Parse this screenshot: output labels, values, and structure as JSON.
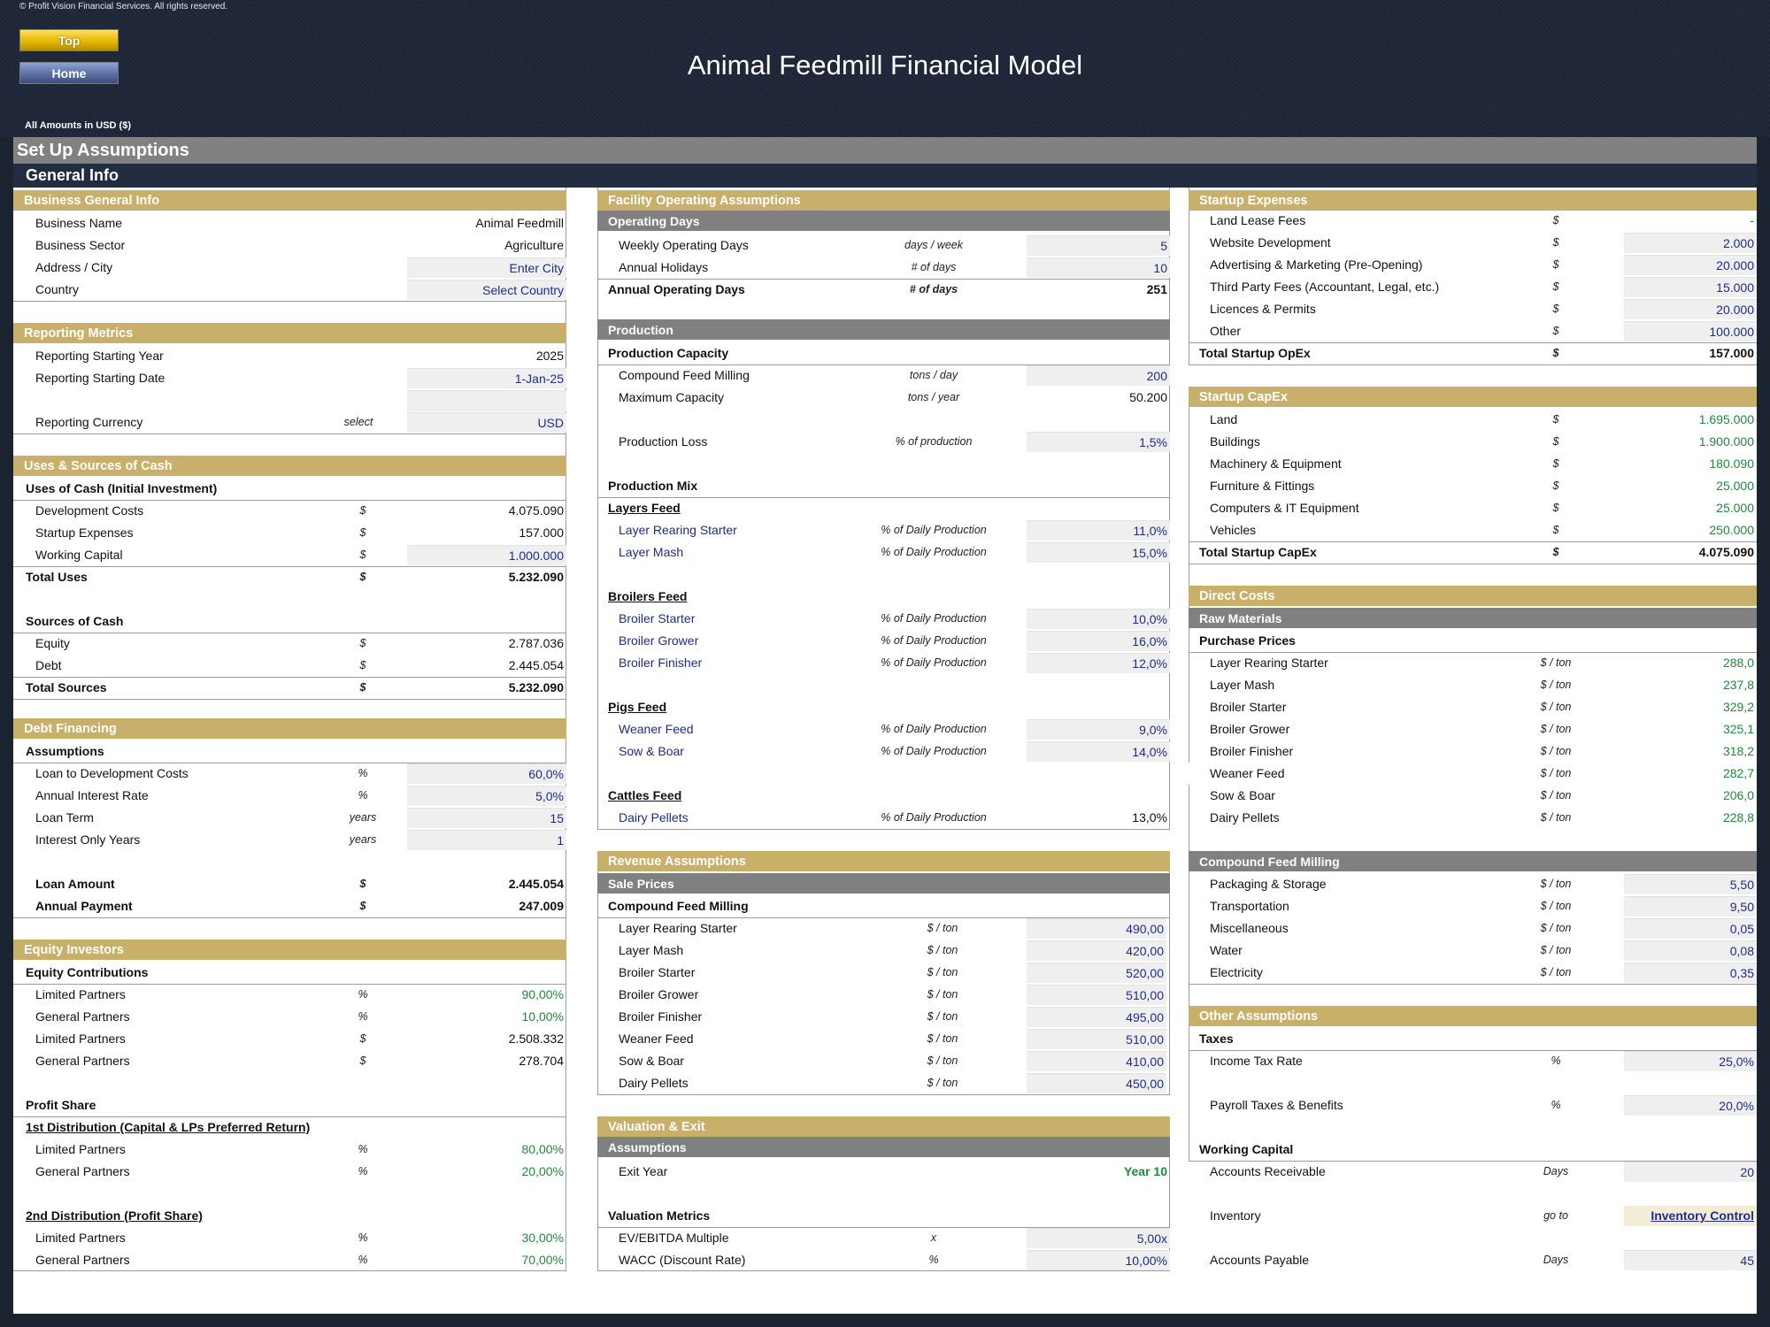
{
  "header": {
    "copyright": "© Profit Vision Financial Services. All rights reserved.",
    "top": "Top",
    "home": "Home",
    "title": "Animal Feedmill Financial Model",
    "amounts": "All Amounts in  USD ($)"
  },
  "sheet": {
    "title": "Set Up Assumptions",
    "subtitle": "General Info"
  },
  "business": {
    "title": "Business General Info",
    "name_l": "Business Name",
    "name_v": "Animal Feedmill",
    "sector_l": "Business Sector",
    "sector_v": "Agriculture",
    "city_l": "Address / City",
    "city_v": "Enter City",
    "country_l": "Country",
    "country_v": "Select Country"
  },
  "reporting": {
    "title": "Reporting Metrics",
    "year_l": "Reporting Starting Year",
    "year_v": "2025",
    "date_l": "Reporting Starting Date",
    "date_v": "1-Jan-25",
    "cur_l": "Reporting Currency",
    "cur_u": "select",
    "cur_v": "USD"
  },
  "uses": {
    "title": "Uses & Sources of Cash",
    "uses_h": "Uses of Cash (Initial Investment)",
    "dev_l": "Development Costs",
    "dev_v": "4.075.090",
    "start_l": "Startup Expenses",
    "start_v": "157.000",
    "wc_l": "Working Capital",
    "wc_v": "1.000.000",
    "tu_l": "Total Uses",
    "tu_v": "5.232.090",
    "src_h": "Sources of Cash",
    "eq_l": "Equity",
    "eq_v": "2.787.036",
    "debt_l": "Debt",
    "debt_v": "2.445.054",
    "ts_l": "Total Sources",
    "ts_v": "5.232.090",
    "cur": "$"
  },
  "debt": {
    "title": "Debt Financing",
    "assump": "Assumptions",
    "ltd_l": "Loan to Development Costs",
    "ltd_u": "%",
    "ltd_v": "60,0%",
    "air_l": "Annual Interest Rate",
    "air_u": "%",
    "air_v": "5,0%",
    "lt_l": "Loan Term",
    "lt_u": "years",
    "lt_v": "15",
    "io_l": "Interest Only Years",
    "io_u": "years",
    "io_v": "1",
    "la_l": "Loan Amount",
    "la_u": "$",
    "la_v": "2.445.054",
    "ap_l": "Annual Payment",
    "ap_u": "$",
    "ap_v": "247.009"
  },
  "equity": {
    "title": "Equity Investors",
    "contrib": "Equity Contributions",
    "r1_l": "Limited Partners",
    "r1_u": "%",
    "r1_v": "90,00%",
    "r2_l": "General Partners",
    "r2_u": "%",
    "r2_v": "10,00%",
    "r3_l": "Limited Partners",
    "r3_u": "$",
    "r3_v": "2.508.332",
    "r4_l": "General Partners",
    "r4_u": "$",
    "r4_v": "278.704",
    "ps": "Profit Share",
    "d1": "1st Distribution (Capital & LPs Preferred Return)",
    "d1a_l": "Limited Partners",
    "d1a_u": "%",
    "d1a_v": "80,00%",
    "d1b_l": "General Partners",
    "d1b_u": "%",
    "d1b_v": "20,00%",
    "d2": "2nd Distribution (Profit Share)",
    "d2a_l": "Limited Partners",
    "d2a_u": "%",
    "d2a_v": "30,00%",
    "d2b_l": "General Partners",
    "d2b_u": "%",
    "d2b_v": "70,00%"
  },
  "facility": {
    "title": "Facility Operating Assumptions",
    "opdays": "Operating Days",
    "w_l": "Weekly Operating Days",
    "w_u": "days / week",
    "w_v": "5",
    "h_l": "Annual Holidays",
    "h_u": "# of days",
    "h_v": "10",
    "a_l": "Annual Operating Days",
    "a_u": "# of days",
    "a_v": "251",
    "prod": "Production",
    "cap": "Production Capacity",
    "cfm_l": "Compound Feed Milling",
    "cfm_u": "tons / day",
    "cfm_v": "200",
    "max_l": "Maximum Capacity",
    "max_u": "tons / year",
    "max_v": "50.200",
    "pl_l": "Production Loss",
    "pl_u": "% of production",
    "pl_v": "1,5%",
    "mix": "Production Mix",
    "pct": "% of Daily Production",
    "layers": "Layers Feed",
    "lrs_l": "Layer Rearing Starter",
    "lrs_v": "11,0%",
    "lm_l": "Layer Mash",
    "lm_v": "15,0%",
    "broilers": "Broilers Feed",
    "bs_l": "Broiler Starter",
    "bs_v": "10,0%",
    "bg_l": "Broiler Grower",
    "bg_v": "16,0%",
    "bf_l": "Broiler Finisher",
    "bf_v": "12,0%",
    "pigs": "Pigs Feed",
    "wf_l": "Weaner Feed",
    "wf_v": "9,0%",
    "sb_l": "Sow & Boar",
    "sb_v": "14,0%",
    "cattle": "Cattles Feed",
    "dp_l": "Dairy Pellets",
    "dp_v": "13,0%"
  },
  "revenue": {
    "title": "Revenue Assumptions",
    "sale": "Sale Prices",
    "cfm": "Compound Feed Milling",
    "u": "$ / ton",
    "items": [
      [
        "Layer Rearing Starter",
        "490,00"
      ],
      [
        "Layer Mash",
        "420,00"
      ],
      [
        "Broiler Starter",
        "520,00"
      ],
      [
        "Broiler Grower",
        "510,00"
      ],
      [
        "Broiler Finisher",
        "495,00"
      ],
      [
        "Weaner Feed",
        "510,00"
      ],
      [
        "Sow & Boar",
        "410,00"
      ],
      [
        "Dairy Pellets",
        "450,00"
      ]
    ]
  },
  "valuation": {
    "title": "Valuation & Exit",
    "assump": "Assumptions",
    "ey_l": "Exit Year",
    "ey_v": "Year 10",
    "vm": "Valuation Metrics",
    "ev_l": "EV/EBITDA Multiple",
    "ev_u": "x",
    "ev_v": "5,00x",
    "w_l": "WACC (Discount Rate)",
    "w_u": "%",
    "w_v": "10,00%"
  },
  "startup": {
    "title": "Startup Expenses",
    "cur": "$",
    "items": [
      [
        "Land Lease Fees",
        "-"
      ],
      [
        "Website Development",
        "2.000"
      ],
      [
        "Advertising & Marketing (Pre-Opening)",
        "20.000"
      ],
      [
        "Third Party Fees (Accountant, Legal, etc.)",
        "15.000"
      ],
      [
        "Licences & Permits",
        "20.000"
      ],
      [
        "Other",
        "100.000"
      ]
    ],
    "total_l": "Total Startup OpEx",
    "total_v": "157.000"
  },
  "capex": {
    "title": "Startup CapEx",
    "cur": "$",
    "items": [
      [
        "Land",
        "1.695.000"
      ],
      [
        "Buildings",
        "1.900.000"
      ],
      [
        "Machinery & Equipment",
        "180.090"
      ],
      [
        "Furniture & Fittings",
        "25.000"
      ],
      [
        "Computers & IT Equipment",
        "25.000"
      ],
      [
        "Vehicles",
        "250.000"
      ]
    ],
    "total_l": "Total Startup CapEx",
    "total_v": "4.075.090"
  },
  "direct": {
    "title": "Direct Costs",
    "raw": "Raw Materials",
    "pp": "Purchase Prices",
    "u": "$ / ton",
    "items": [
      [
        "Layer Rearing Starter",
        "288,0"
      ],
      [
        "Layer Mash",
        "237,8"
      ],
      [
        "Broiler Starter",
        "329,2"
      ],
      [
        "Broiler Grower",
        "325,1"
      ],
      [
        "Broiler Finisher",
        "318,2"
      ],
      [
        "Weaner Feed",
        "282,7"
      ],
      [
        "Sow & Boar",
        "206,0"
      ],
      [
        "Dairy Pellets",
        "228,8"
      ]
    ],
    "cfm": "Compound Feed Milling",
    "cfm_items": [
      [
        "Packaging & Storage",
        "5,50"
      ],
      [
        "Transportation",
        "9,50"
      ],
      [
        "Miscellaneous",
        "0,05"
      ],
      [
        "Water",
        "0,08"
      ],
      [
        "Electricity",
        "0,35"
      ]
    ]
  },
  "other": {
    "title": "Other Assumptions",
    "taxes": "Taxes",
    "itr_l": "Income Tax Rate",
    "itr_u": "%",
    "itr_v": "25,0%",
    "ptb_l": "Payroll Taxes & Benefits",
    "ptb_u": "%",
    "ptb_v": "20,0%",
    "wc": "Working Capital",
    "ar_l": "Accounts Receivable",
    "ar_u": "Days",
    "ar_v": "20",
    "inv_l": "Inventory",
    "inv_u": "go to",
    "inv_v": "Inventory Control",
    "ap_l": "Accounts Payable",
    "ap_u": "Days",
    "ap_v": "45"
  },
  "colors": {
    "accent": "#c8b06a",
    "header_dark": "#1d2535",
    "sub_gray": "#808080",
    "input_blue": "#1f2b8c",
    "calc_green": "#1e8a3c"
  }
}
